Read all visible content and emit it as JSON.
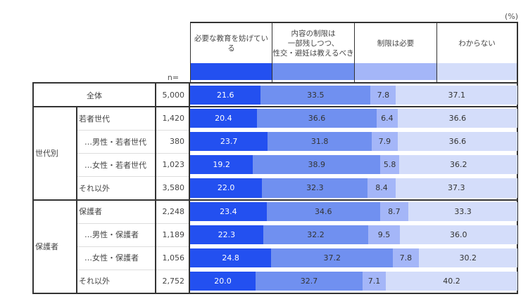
{
  "unit": "(%)",
  "n_label": "n=",
  "colors": [
    "#2350f0",
    "#7090f0",
    "#a4b6f8",
    "#d4ddfa"
  ],
  "chart_data": {
    "type": "bar",
    "stacked": true,
    "orientation": "horizontal",
    "xlim": [
      0,
      100
    ],
    "legend": [
      "必要な教育を妨げている",
      "内容の制限は\n一部残しつつ、\n性交・避妊は教えるべき",
      "制限は必要",
      "わからない"
    ],
    "groups": [
      {
        "label": "全体",
        "rows": [
          0
        ]
      },
      {
        "label": "世代別",
        "rows": [
          1,
          2,
          3,
          4
        ]
      },
      {
        "label": "保護者",
        "rows": [
          5,
          6,
          7,
          8
        ]
      }
    ],
    "rows": [
      {
        "label": "全体",
        "n": "5,000",
        "values": [
          21.6,
          33.5,
          7.8,
          37.1
        ]
      },
      {
        "label": "若者世代",
        "n": "1,420",
        "values": [
          20.4,
          36.6,
          6.4,
          36.6
        ]
      },
      {
        "label": "…男性・若者世代",
        "n": "380",
        "values": [
          23.7,
          31.8,
          7.9,
          36.6
        ]
      },
      {
        "label": "…女性・若者世代",
        "n": "1,023",
        "values": [
          19.2,
          38.9,
          5.8,
          36.2
        ]
      },
      {
        "label": "それ以外",
        "n": "3,580",
        "values": [
          22.0,
          32.3,
          8.4,
          37.3
        ]
      },
      {
        "label": "保護者",
        "n": "2,248",
        "values": [
          23.4,
          34.6,
          8.7,
          33.3
        ]
      },
      {
        "label": "…男性・保護者",
        "n": "1,189",
        "values": [
          22.3,
          32.2,
          9.5,
          36.0
        ]
      },
      {
        "label": "…女性・保護者",
        "n": "1,056",
        "values": [
          24.8,
          37.2,
          7.8,
          30.2
        ]
      },
      {
        "label": "それ以外",
        "n": "2,752",
        "values": [
          20.0,
          32.7,
          7.1,
          40.2
        ]
      }
    ]
  }
}
